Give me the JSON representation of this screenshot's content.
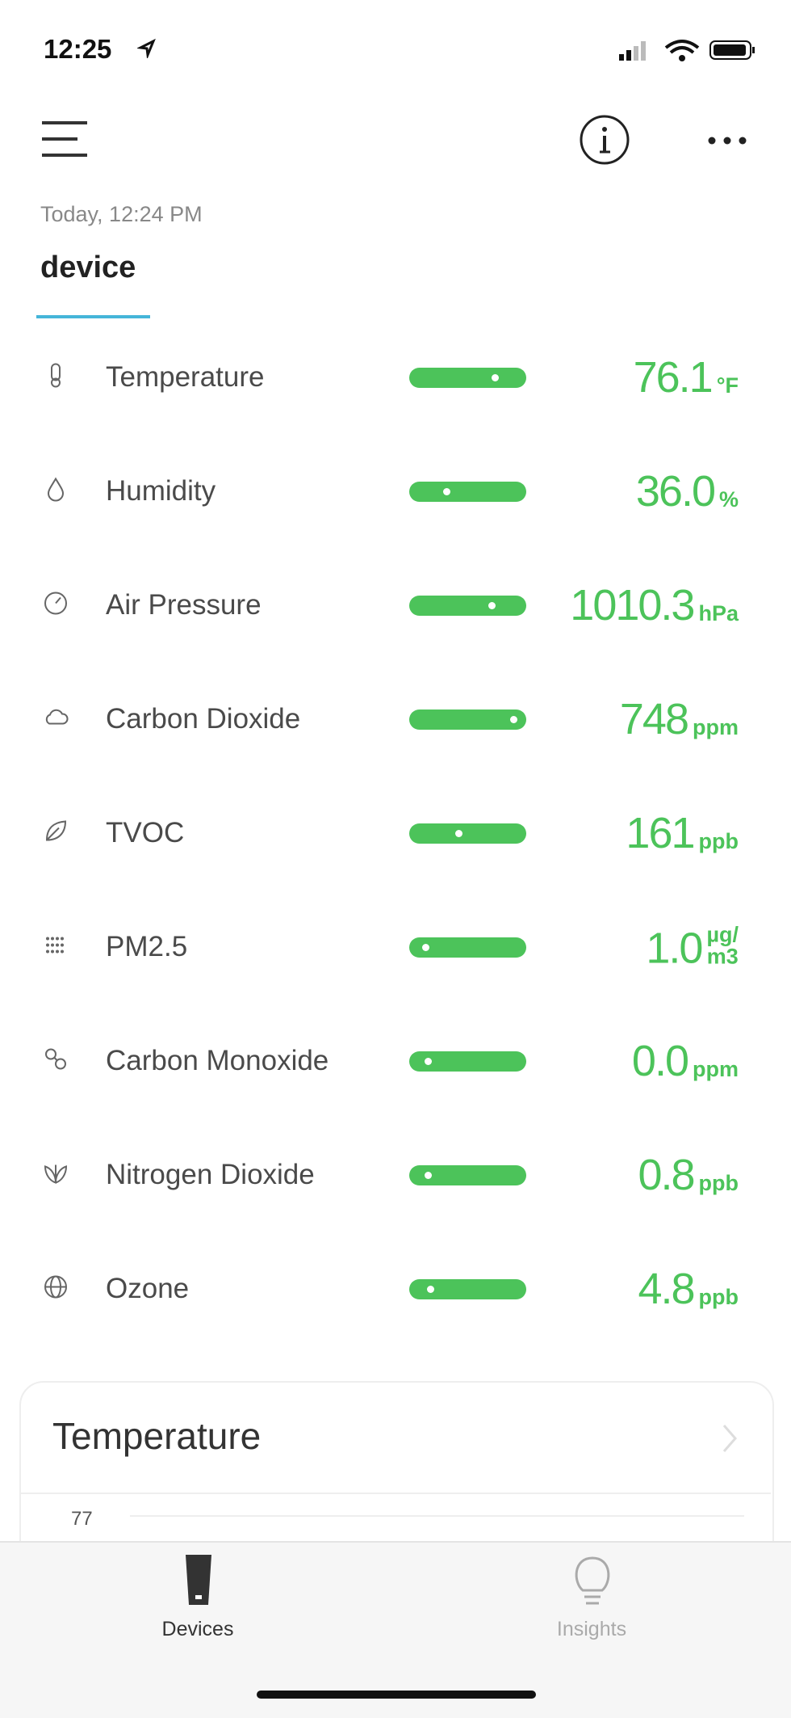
{
  "status_bar": {
    "time": "12:25"
  },
  "header": {
    "timestamp": "Today, 12:24 PM",
    "tab": "device"
  },
  "readings": [
    {
      "name": "Temperature",
      "value": "76.1",
      "unit": [
        "°F"
      ]
    },
    {
      "name": "Humidity",
      "value": "36.0",
      "unit": [
        "%"
      ]
    },
    {
      "name": "Air Pressure",
      "value": "1010.3",
      "unit": [
        "hPa"
      ]
    },
    {
      "name": "Carbon Dioxide",
      "value": "748",
      "unit": [
        "ppm"
      ]
    },
    {
      "name": "TVOC",
      "value": "161",
      "unit": [
        "ppb"
      ]
    },
    {
      "name": "PM2.5",
      "value": "1.0",
      "unit": [
        "µg/",
        "m3"
      ]
    },
    {
      "name": "Carbon Monoxide",
      "value": "0.0",
      "unit": [
        "ppm"
      ]
    },
    {
      "name": "Nitrogen Dioxide",
      "value": "0.8",
      "unit": [
        "ppb"
      ]
    },
    {
      "name": "Ozone",
      "value": "4.8",
      "unit": [
        "ppb"
      ]
    }
  ],
  "card": {
    "title": "Temperature",
    "axis_label": "77"
  },
  "tab_bar": {
    "tabs": [
      "Devices",
      "Insights"
    ]
  }
}
